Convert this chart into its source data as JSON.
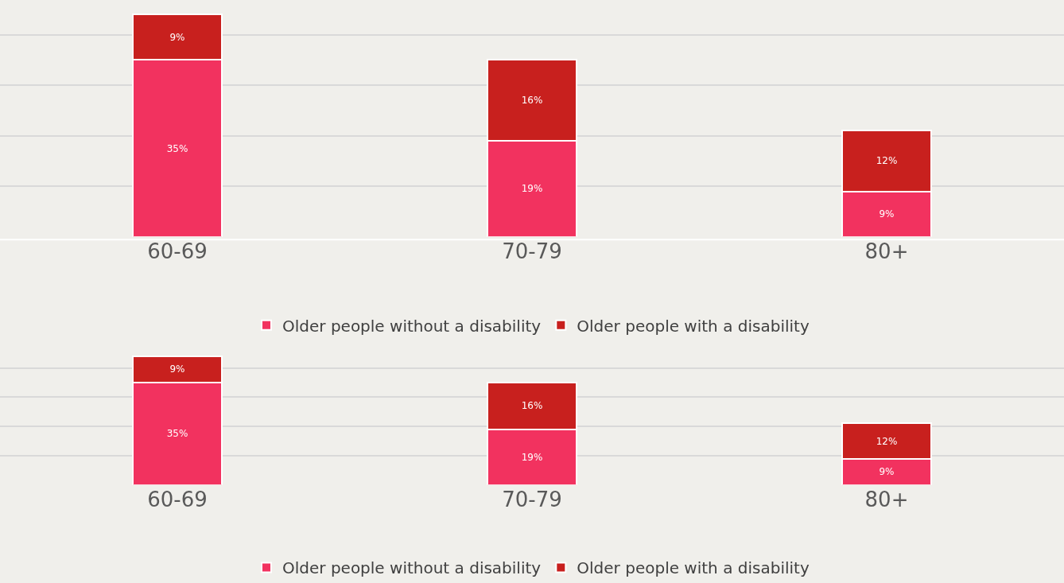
{
  "chart_data": [
    {
      "type": "bar",
      "stacked": true,
      "categories": [
        "60-69",
        "70-79",
        "80+"
      ],
      "series": [
        {
          "name": "Older people without a disability",
          "color": "#f2325f",
          "values": [
            35,
            19,
            9
          ],
          "value_labels": [
            "35%",
            "19%",
            "9%"
          ]
        },
        {
          "name": "Older people with a disability",
          "color": "#c8201e",
          "values": [
            9,
            16,
            12
          ],
          "value_labels": [
            "9%",
            "16%",
            "12%"
          ]
        }
      ],
      "grid": "y",
      "tick_labels": "x",
      "legend": "bottom"
    },
    {
      "type": "bar",
      "stacked": true,
      "categories": [
        "60-69",
        "70-79",
        "80+"
      ],
      "series": [
        {
          "name": "Older people without a disability",
          "color": "#f2325f",
          "values": [
            35,
            19,
            9
          ],
          "value_labels": [
            "35%",
            "19%",
            "9%"
          ]
        },
        {
          "name": "Older people with a disability",
          "color": "#c8201e",
          "values": [
            9,
            16,
            12
          ],
          "value_labels": [
            "9%",
            "16%",
            "12%"
          ]
        }
      ],
      "grid": "y",
      "tick_labels": "x",
      "legend": "bottom"
    }
  ]
}
